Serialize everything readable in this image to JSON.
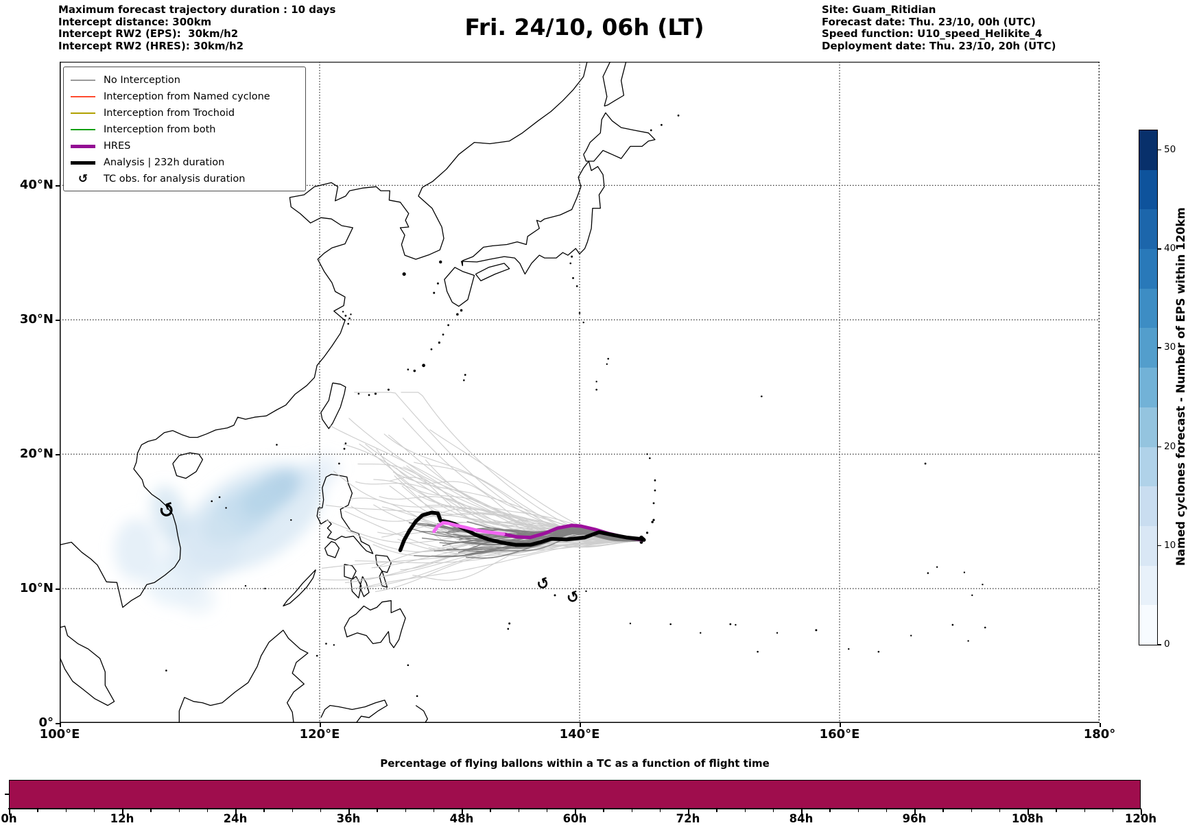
{
  "header": {
    "left": [
      "Maximum forecast trajectory duration : 10 days",
      "Intercept distance: 300km",
      "Intercept RW2 (EPS):  30km/h2",
      "Intercept RW2 (HRES): 30km/h2"
    ],
    "title": "Fri. 24/10, 06h (LT)",
    "right": [
      "Site: Guam_Ritidian",
      "Forecast date: Thu. 23/10, 00h (UTC)",
      "Speed function: U10_speed_Helikite_4",
      "Deployment date: Thu. 23/10, 20h (UTC)"
    ]
  },
  "legend": {
    "items": [
      {
        "label": "No Interception",
        "type": "line",
        "color": "#9a9a9a",
        "lw": 1.5
      },
      {
        "label": "Interception from Named cyclone",
        "type": "line",
        "color": "#ff4a2e",
        "lw": 1.5
      },
      {
        "label": "Interception from Trochoid",
        "type": "line",
        "color": "#b0a000",
        "lw": 1.5
      },
      {
        "label": "Interception from both",
        "type": "line",
        "color": "#10a010",
        "lw": 1.5
      },
      {
        "label": "HRES",
        "type": "line",
        "color": "#930d93",
        "lw": 5
      },
      {
        "label": "Analysis | 232h duration",
        "type": "line",
        "color": "#000000",
        "lw": 5
      },
      {
        "label": "TC obs. for analysis duration",
        "type": "marker",
        "marker": "↺",
        "color": "#000000"
      }
    ]
  },
  "map": {
    "lon_min": 100,
    "lon_max": 180,
    "lat_min": 0,
    "lat_max": 49.2,
    "xticks": [
      {
        "lon": 100,
        "label": "100°E"
      },
      {
        "lon": 120,
        "label": "120°E"
      },
      {
        "lon": 140,
        "label": "140°E"
      },
      {
        "lon": 160,
        "label": "160°E"
      },
      {
        "lon": 180,
        "label": "180°"
      }
    ],
    "yticks": [
      {
        "lat": 0,
        "label": "0°"
      },
      {
        "lat": 10,
        "label": "10°N"
      },
      {
        "lat": 20,
        "label": "20°N"
      },
      {
        "lat": 30,
        "label": "30°N"
      },
      {
        "lat": 40,
        "label": "40°N"
      }
    ],
    "grid_lons": [
      120,
      140,
      160
    ],
    "grid_lats": [
      10,
      20,
      30,
      40
    ]
  },
  "colorbar": {
    "label": "Named cyclones forecast - Number of EPS within 120km",
    "vmin": 0,
    "vmax": 52,
    "ticks": [
      0,
      10,
      20,
      30,
      40,
      50
    ],
    "steps_bottom_to_top": [
      "#f7fbff",
      "#e8f1fa",
      "#d9e7f5",
      "#c9ddf0",
      "#b0d2e9",
      "#94c4df",
      "#72b2d7",
      "#539ecc",
      "#3d8dc4",
      "#2979b9",
      "#1c66ab",
      "#0e539c",
      "#08306b"
    ]
  },
  "chart_data": [
    {
      "type": "map-trajectories",
      "description": "EPS balloon forecast trajectories launched from Guam converging at site, TC analysis and HRES tracks, named-cyclone density shading over the South China Sea",
      "convergence_point": [
        144.85,
        13.55
      ],
      "analysis_track": [
        [
          126.2,
          12.85
        ],
        [
          126.5,
          13.6
        ],
        [
          126.9,
          14.3
        ],
        [
          127.4,
          15.0
        ],
        [
          127.9,
          15.45
        ],
        [
          128.6,
          15.65
        ],
        [
          129.1,
          15.6
        ],
        [
          129.3,
          15.05
        ],
        [
          129.9,
          14.95
        ],
        [
          130.4,
          14.8
        ],
        [
          131.2,
          14.4
        ],
        [
          132.0,
          14.0
        ],
        [
          133.0,
          13.65
        ],
        [
          134.1,
          13.4
        ],
        [
          135.1,
          13.25
        ],
        [
          136.2,
          13.25
        ],
        [
          137.0,
          13.45
        ],
        [
          137.8,
          13.7
        ],
        [
          139.0,
          13.65
        ],
        [
          140.4,
          13.8
        ],
        [
          141.5,
          14.2
        ],
        [
          142.5,
          14.0
        ],
        [
          143.6,
          13.8
        ],
        [
          144.6,
          13.7
        ],
        [
          144.95,
          13.62
        ],
        [
          144.75,
          13.8
        ]
      ],
      "hres_track": [
        [
          134.15,
          14.05
        ],
        [
          135.1,
          13.85
        ],
        [
          136.2,
          13.8
        ],
        [
          137.3,
          14.1
        ],
        [
          138.3,
          14.5
        ],
        [
          139.4,
          14.7
        ],
        [
          140.1,
          14.65
        ],
        [
          141.2,
          14.4
        ],
        [
          142.2,
          14.1
        ],
        [
          143.3,
          13.85
        ],
        [
          144.3,
          13.7
        ],
        [
          144.9,
          13.62
        ]
      ],
      "hres_recent": [
        [
          128.8,
          14.25
        ],
        [
          129.05,
          14.6
        ],
        [
          129.5,
          14.9
        ],
        [
          129.9,
          14.85
        ],
        [
          130.5,
          14.7
        ],
        [
          131.2,
          14.55
        ],
        [
          132.0,
          14.35
        ],
        [
          133.0,
          14.2
        ],
        [
          134.15,
          14.05
        ]
      ],
      "tc_obs": [
        [
          108.25,
          15.8,
          28
        ],
        [
          137.2,
          10.3,
          22
        ],
        [
          139.5,
          9.3,
          22
        ]
      ],
      "ensemble": {
        "origin": [
          144.85,
          13.55
        ],
        "no_interception": {
          "count": 62,
          "color": "#c9c9c9",
          "lon_reach": [
            119.8,
            128.8
          ],
          "lat_spread": [
            8.5,
            24.5
          ]
        },
        "intercepting": {
          "count": 34,
          "color": "#7d7d7d",
          "lon_reach": [
            126.8,
            132.5
          ],
          "lat_spread": [
            12.2,
            15.8
          ]
        }
      },
      "density_blobs": [
        [
          116.3,
          17.1,
          2.6,
          1.25,
          -33,
          "#6fa8cf",
          0.75
        ],
        [
          114.0,
          15.6,
          3.4,
          1.7,
          -33,
          "#9ec7e2",
          0.65
        ],
        [
          114.8,
          15.3,
          6.0,
          3.3,
          -30,
          "#c9dff0",
          0.6
        ],
        [
          111.0,
          13.0,
          3.0,
          2.6,
          -20,
          "#d5e6f3",
          0.55
        ],
        [
          105.9,
          12.9,
          1.7,
          2.3,
          0,
          "#d5e6f3",
          0.6
        ],
        [
          108.8,
          10.6,
          2.2,
          1.9,
          0,
          "#dcebf6",
          0.6
        ],
        [
          110.6,
          9.2,
          1.4,
          1.1,
          0,
          "#e2eef7",
          0.6
        ],
        [
          108.4,
          15.6,
          1.3,
          2.1,
          -15,
          "#b9d5ea",
          0.5
        ],
        [
          119.9,
          18.6,
          1.7,
          1.2,
          -30,
          "#d5e6f3",
          0.5
        ]
      ]
    },
    {
      "type": "bar",
      "title": "Percentage of flying ballons within a TC as a function of flight time",
      "x_hours_range": [
        0,
        120
      ],
      "major_tick_hours": [
        0,
        12,
        24,
        36,
        48,
        60,
        72,
        84,
        96,
        108,
        120
      ],
      "minor_tick_step_hours": 3,
      "x_tick_labels": [
        "0h",
        "12h",
        "24h",
        "36h",
        "48h",
        "60h",
        "72h",
        "84h",
        "96h",
        "108h",
        "120h"
      ],
      "value_percent": 100,
      "note": "single continuous bar at 100% for the whole 0-120h flight time",
      "bar_color": "#9f0d4d"
    }
  ]
}
